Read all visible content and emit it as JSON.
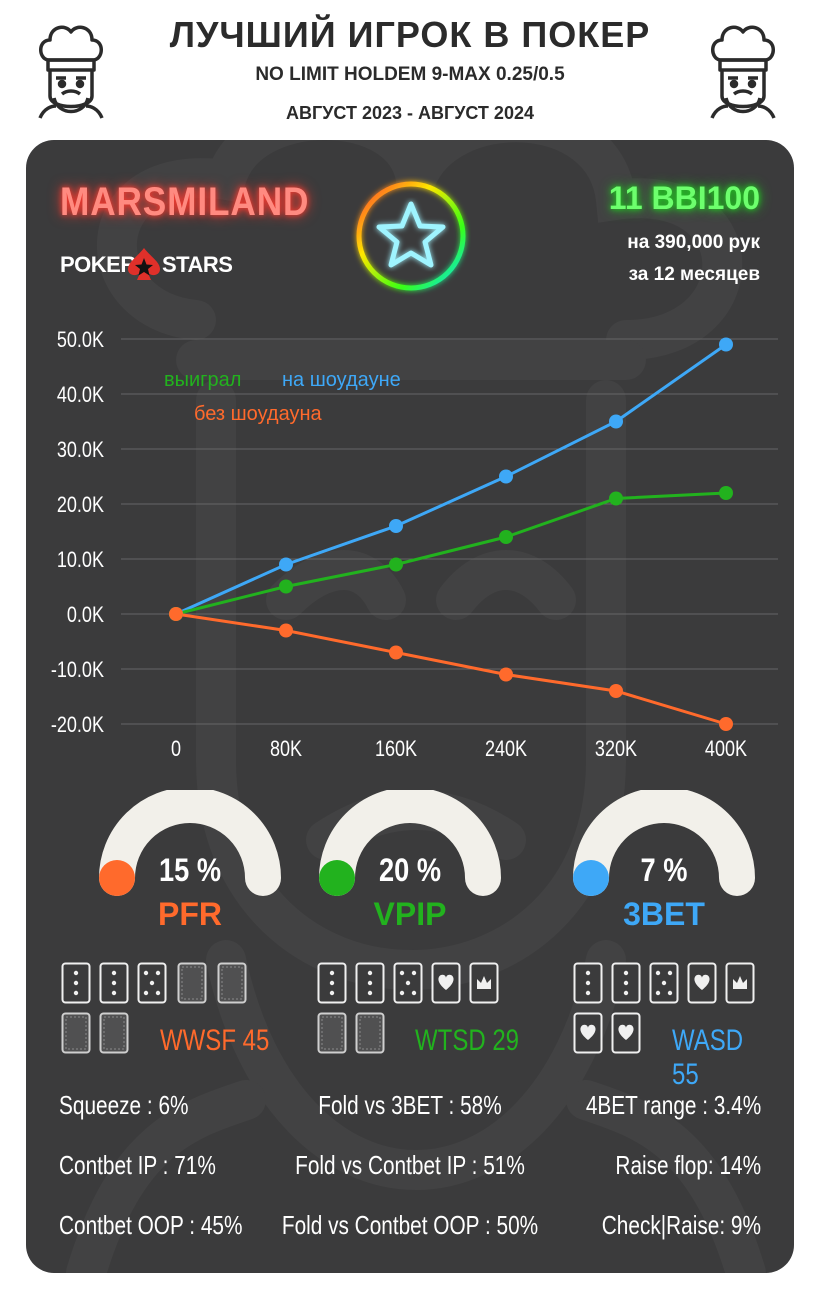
{
  "header": {
    "title": "ЛУЧШИЙ ИГРОК В ПОКЕР",
    "subtitle": "NO LIMIT HOLDEM 9-MAX 0.25/0.5",
    "period": "АВГУСТ 2023 - АВГУСТ 2024"
  },
  "player": {
    "name": "MARSMILAND",
    "room_left": "POKER",
    "room_right": "STARS",
    "winrate": "11 BBI100",
    "hands": "на 390,000 рук",
    "months": "за  12 месяцев"
  },
  "colors": {
    "blue": "#3ea8f7",
    "green": "#22b21e",
    "orange": "#ff6a2c",
    "card_bg": "#3b3b3c"
  },
  "chart_data": {
    "type": "line",
    "x": [
      0,
      80000,
      160000,
      240000,
      320000,
      400000
    ],
    "x_tick_labels": [
      "0",
      "80K",
      "160K",
      "240K",
      "320K",
      "400K"
    ],
    "y_tick_labels": [
      "50.0K",
      "40.0K",
      "30.0K",
      "20.0K",
      "10.0K",
      "0.0K",
      "-10.0K",
      "-20.0K"
    ],
    "y_ticks": [
      50000,
      40000,
      30000,
      20000,
      10000,
      0,
      -10000,
      -20000
    ],
    "ylim": [
      -20000,
      50000
    ],
    "xlim": [
      0,
      400000
    ],
    "grid": true,
    "series": [
      {
        "name": "на шоудауне",
        "color": "#3ea8f7",
        "values": [
          0,
          9000,
          16000,
          25000,
          35000,
          49000
        ]
      },
      {
        "name": "выиграл",
        "color": "#22b21e",
        "values": [
          0,
          5000,
          9000,
          14000,
          21000,
          22000
        ]
      },
      {
        "name": "без шоудауна",
        "color": "#ff6a2c",
        "values": [
          0,
          -3000,
          -7000,
          -11000,
          -14000,
          -20000
        ]
      }
    ]
  },
  "gauges": [
    {
      "value": "15 %",
      "label": "PFR",
      "fraction": 0.15,
      "color": "#ff6a2c"
    },
    {
      "value": "20 %",
      "label": "VPIP",
      "fraction": 0.2,
      "color": "#22b21e"
    },
    {
      "value": "7 %",
      "label": "3BET",
      "fraction": 0.07,
      "color": "#3ea8f7"
    }
  ],
  "card_stats": [
    {
      "label": "WWSF 45",
      "color": "#ff6a2c"
    },
    {
      "label": "WTSD 29",
      "color": "#22b21e"
    },
    {
      "label": "WASD 55",
      "color": "#3ea8f7"
    }
  ],
  "stats": [
    [
      "Squeeze : 6%",
      "Fold vs 3BET : 58%",
      "4BET range : 3.4%"
    ],
    [
      "Contbet IP : 71%",
      "Fold vs Contbet IP : 51%",
      "Raise flop: 14%"
    ],
    [
      "Contbet OOP : 45%",
      "Fold vs Contbet OOP : 50%",
      "Check|Raise: 9%"
    ]
  ]
}
